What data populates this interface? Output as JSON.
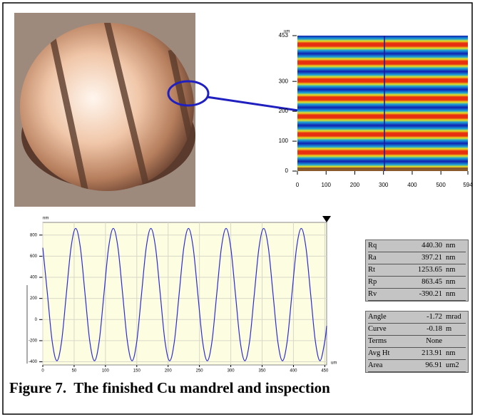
{
  "map": {
    "unit": "um",
    "xlim": [
      0,
      594
    ],
    "xticks": [
      0,
      100,
      200,
      300,
      400,
      500,
      594
    ],
    "ylim": [
      0,
      453
    ],
    "yticks": [
      0,
      100,
      200,
      300,
      453
    ]
  },
  "chart_data": {
    "type": "line",
    "y_label": "nm",
    "x_label": "um",
    "color": "#2b2bd8",
    "grid": true,
    "xlim": [
      0,
      453
    ],
    "ylim": [
      -430,
      920
    ],
    "xticks": [
      0,
      50,
      100,
      150,
      200,
      250,
      300,
      350,
      400,
      450
    ],
    "yticks": [
      -400,
      -200,
      0,
      200,
      400,
      600,
      800
    ],
    "x": [
      0,
      7.5,
      15,
      22.5,
      30,
      37.5,
      45,
      52.5,
      60,
      67.5,
      75,
      82.5,
      90,
      97.5,
      105,
      112.5,
      120,
      127.5,
      135,
      142.5,
      150,
      157.5,
      165,
      172.5,
      180,
      187.5,
      195,
      202.5,
      210,
      217.5,
      225,
      232.5,
      240,
      247.5,
      255,
      262.5,
      270,
      277.5,
      285,
      292.5,
      300,
      307.5,
      315,
      322.5,
      330,
      337.5,
      345,
      352.5,
      360,
      367.5,
      375,
      382.5,
      390,
      397.5,
      405,
      412.5,
      420,
      427.5,
      435,
      442.5,
      450,
      453
    ],
    "values": [
      680,
      237,
      -207,
      -390,
      -207,
      237,
      680,
      863,
      680,
      237,
      -207,
      -390,
      -207,
      237,
      680,
      863,
      680,
      237,
      -207,
      -390,
      -207,
      237,
      680,
      863,
      680,
      237,
      -207,
      -390,
      -207,
      237,
      680,
      863,
      680,
      237,
      -207,
      -390,
      -207,
      237,
      680,
      863,
      680,
      237,
      -207,
      -390,
      -207,
      237,
      680,
      863,
      680,
      237,
      -207,
      -390,
      -207,
      237,
      680,
      863,
      680,
      237,
      -207,
      -390,
      -207,
      -60
    ]
  },
  "tables": [
    {
      "rows": [
        [
          "Rq",
          "440.30",
          "nm"
        ],
        [
          "Ra",
          "397.21",
          "nm"
        ],
        [
          "Rt",
          "1253.65",
          "nm"
        ],
        [
          "Rp",
          "863.45",
          "nm"
        ],
        [
          "Rv",
          "-390.21",
          "nm"
        ]
      ]
    },
    {
      "rows": [
        [
          "Angle",
          "-1.72",
          "mrad"
        ],
        [
          "Curve",
          "-0.18",
          "m"
        ],
        [
          "Terms",
          "None",
          ""
        ],
        [
          "Avg Ht",
          "213.91",
          "nm"
        ],
        [
          "Area",
          "96.91",
          "um2"
        ]
      ]
    }
  ],
  "caption": "Figure 7.  The finished Cu mandrel and inspection"
}
